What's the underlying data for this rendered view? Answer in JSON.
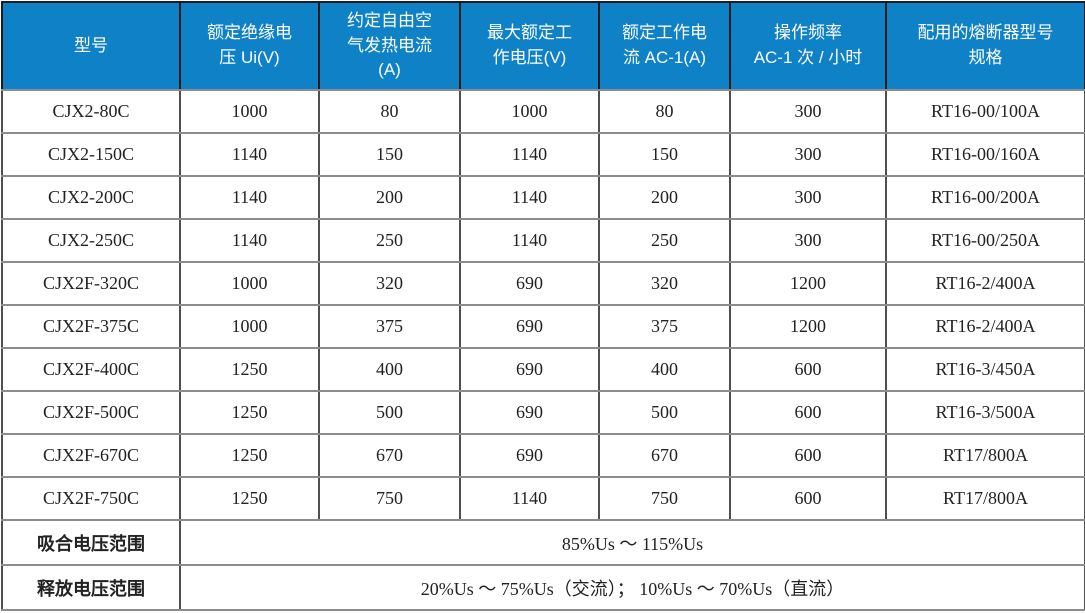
{
  "colors": {
    "header_bg": "#0f81c6",
    "header_text": "#ffffff",
    "body_text": "#222222"
  },
  "table": {
    "columns": [
      {
        "label": "型号"
      },
      {
        "label": "额定绝缘电\n压 Ui(V)"
      },
      {
        "label": "约定自由空\n气发热电流\n(A)"
      },
      {
        "label": "最大额定工\n作电压(V)"
      },
      {
        "label": "额定工作电\n流 AC-1(A)"
      },
      {
        "label": "操作频率\nAC-1 次 / 小时"
      },
      {
        "label": "配用的熔断器型号\n规格"
      }
    ],
    "rows": [
      [
        "CJX2-80C",
        "1000",
        "80",
        "1000",
        "80",
        "300",
        "RT16-00/100A"
      ],
      [
        "CJX2-150C",
        "1140",
        "150",
        "1140",
        "150",
        "300",
        "RT16-00/160A"
      ],
      [
        "CJX2-200C",
        "1140",
        "200",
        "1140",
        "200",
        "300",
        "RT16-00/200A"
      ],
      [
        "CJX2-250C",
        "1140",
        "250",
        "1140",
        "250",
        "300",
        "RT16-00/250A"
      ],
      [
        "CJX2F-320C",
        "1000",
        "320",
        "690",
        "320",
        "1200",
        "RT16-2/400A"
      ],
      [
        "CJX2F-375C",
        "1000",
        "375",
        "690",
        "375",
        "1200",
        "RT16-2/400A"
      ],
      [
        "CJX2F-400C",
        "1250",
        "400",
        "690",
        "400",
        "600",
        "RT16-3/450A"
      ],
      [
        "CJX2F-500C",
        "1250",
        "500",
        "690",
        "500",
        "600",
        "RT16-3/500A"
      ],
      [
        "CJX2F-670C",
        "1250",
        "670",
        "690",
        "670",
        "600",
        "RT17/800A"
      ],
      [
        "CJX2F-750C",
        "1250",
        "750",
        "1140",
        "750",
        "600",
        "RT17/800A"
      ]
    ],
    "footer": [
      {
        "label": "吸合电压范围",
        "value": "85%Us ～ 115%Us"
      },
      {
        "label": "释放电压范围",
        "value": "20%Us ～ 75%Us（交流）； 10%Us ～ 70%Us（直流）"
      }
    ]
  }
}
